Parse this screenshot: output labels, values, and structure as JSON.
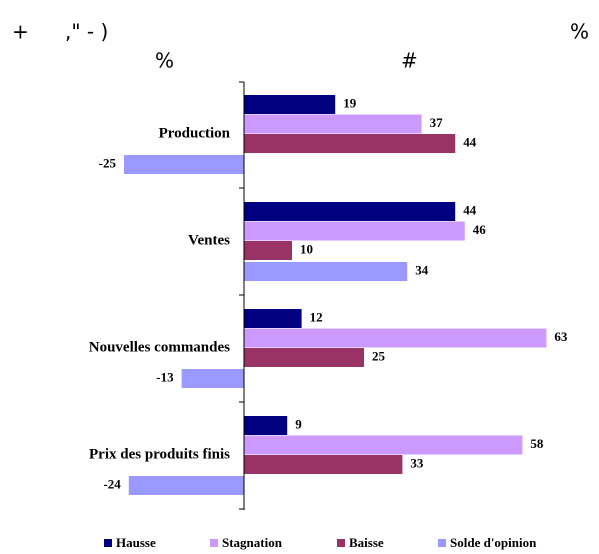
{
  "chart_data": {
    "type": "hbar",
    "annotations": [
      "+",
      ",\" - )",
      "%",
      "%",
      "#"
    ],
    "categories": [
      "Production",
      "Ventes",
      "Nouvelles commandes",
      "Prix des produits finis"
    ],
    "series": [
      {
        "name": "Hausse",
        "color": "#000080",
        "values": [
          19,
          44,
          12,
          9
        ]
      },
      {
        "name": "Stagnation",
        "color": "#cc99ff",
        "values": [
          37,
          46,
          63,
          58
        ]
      },
      {
        "name": "Baisse",
        "color": "#993366",
        "values": [
          44,
          10,
          25,
          33
        ]
      },
      {
        "name": "Solde d'opinion",
        "color": "#9999ff",
        "values": [
          -25,
          34,
          -13,
          -24
        ]
      }
    ],
    "legend": "bottom"
  }
}
